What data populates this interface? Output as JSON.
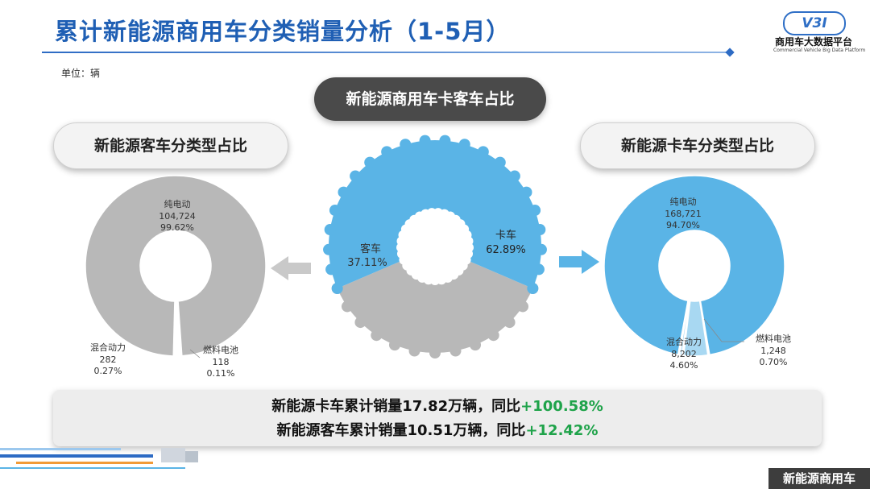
{
  "page": {
    "title": "累计新能源商用车分类销量分析（1-5月）",
    "unit": "单位：辆",
    "logo_text": "V3I",
    "logo_name": "商用车大数据平台",
    "logo_sub": "Commercial Vehicle Big Data Platform",
    "footer_tag": "新能源商用车"
  },
  "pills": {
    "center": "新能源商用车卡客车占比",
    "left": "新能源客车分类型占比",
    "right": "新能源卡车分类型占比"
  },
  "summary": {
    "line1_prefix": "新能源卡车累计销量17.82万辆，同比",
    "line1_pct": "+100.58%",
    "line2_prefix": "新能源客车累计销量10.51万辆，同比",
    "line2_pct": "+12.42%"
  },
  "colors": {
    "bus": "#b8b8b8",
    "truck": "#5ab4e6",
    "truck_light": "#a8d8f2",
    "accent_green": "#1fa34a",
    "title_blue": "#1f5fb4"
  },
  "chart_data": [
    {
      "type": "pie",
      "title": "新能源商用车卡客车占比",
      "series": [
        {
          "name": "客车",
          "percent": 37.11,
          "label": "客车",
          "pct_text": "37.11%"
        },
        {
          "name": "卡车",
          "percent": 62.89,
          "label": "卡车",
          "pct_text": "62.89%"
        }
      ]
    },
    {
      "type": "pie",
      "title": "新能源客车分类型占比",
      "series": [
        {
          "name": "纯电动",
          "value": 104724,
          "value_text": "104,724",
          "pct_text": "99.62%"
        },
        {
          "name": "混合动力",
          "value": 282,
          "value_text": "282",
          "pct_text": "0.27%"
        },
        {
          "name": "燃料电池",
          "value": 118,
          "value_text": "118",
          "pct_text": "0.11%"
        }
      ]
    },
    {
      "type": "pie",
      "title": "新能源卡车分类型占比",
      "series": [
        {
          "name": "纯电动",
          "value": 168721,
          "value_text": "168,721",
          "pct_text": "94.70%"
        },
        {
          "name": "混合动力",
          "value": 8202,
          "value_text": "8,202",
          "pct_text": "4.60%"
        },
        {
          "name": "燃料电池",
          "value": 1248,
          "value_text": "1,248",
          "pct_text": "0.70%"
        }
      ]
    }
  ]
}
